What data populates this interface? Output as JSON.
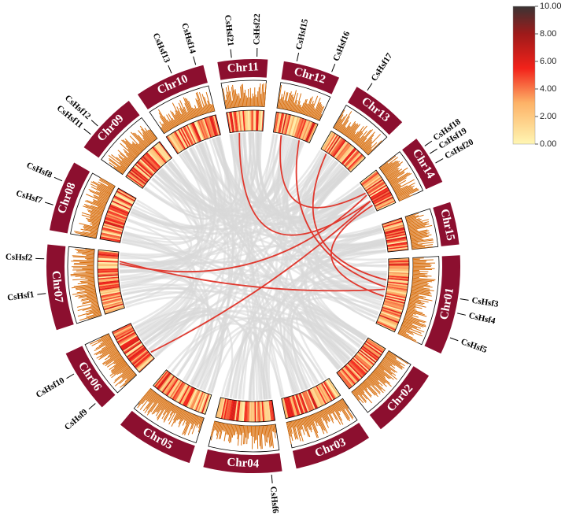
{
  "chromosomes": [
    "Chr01",
    "Chr02",
    "Chr03",
    "Chr04",
    "Chr05",
    "Chr06",
    "Chr07",
    "Chr08",
    "Chr09",
    "Chr10",
    "Chr11",
    "Chr12",
    "Chr13",
    "Chr14",
    "Chr15"
  ],
  "genes": [
    "CsHsf1",
    "CsHsf2",
    "CsHsf3",
    "CsHsf4",
    "CsHsf5",
    "CsHsf6",
    "CsHsf7",
    "CsHsf8",
    "CsHsf9",
    "CsHsf10",
    "CsHsf11",
    "CsHsf12",
    "CsHsf13",
    "CsHsf14",
    "CsHsf15",
    "CsHsf16",
    "CsHsf17",
    "CsHsf18",
    "CsHsf19",
    "CsHsf20",
    "CsHsf21",
    "CsHsf22"
  ],
  "color_scale": {
    "ticks": [
      {
        "value": 0,
        "label": "0.00"
      },
      {
        "value": 2,
        "label": "2.00"
      },
      {
        "value": 4,
        "label": "4.00"
      },
      {
        "value": 6,
        "label": "6.00"
      },
      {
        "value": 8,
        "label": "8.00"
      },
      {
        "value": 10,
        "label": "10.00"
      }
    ]
  }
}
